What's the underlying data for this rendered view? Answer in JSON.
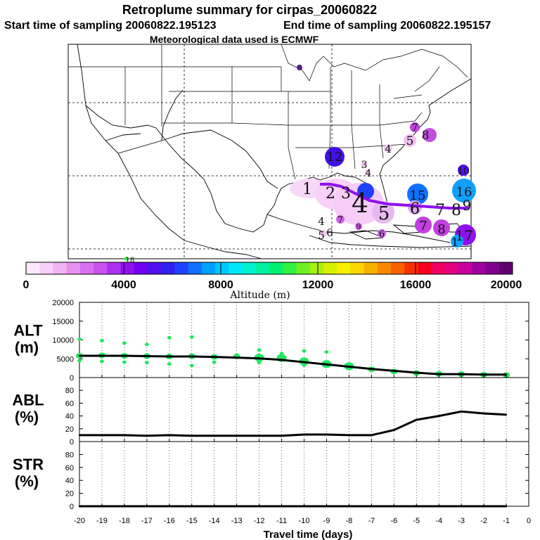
{
  "title": {
    "line1": "Retroplume summary for cirpas_20060822",
    "line2_start": "Start time of sampling 20060822.195123",
    "line2_end": "End time of sampling 20060822.195157",
    "line3": "Meteorological data used is ECMWF"
  },
  "colorbar": {
    "label": "Altitude (m)",
    "ticks": [
      "0",
      "4000",
      "8000",
      "12000",
      "16000",
      "20000"
    ],
    "range": [
      0,
      20000
    ],
    "colors": [
      "#fce8fc",
      "#f8cff8",
      "#f0b2f0",
      "#e890ee",
      "#d870ee",
      "#c850f0",
      "#b030f0",
      "#9010f0",
      "#7000f0",
      "#5010ee",
      "#3020ee",
      "#2040ff",
      "#1070ff",
      "#00a0ff",
      "#00c8ff",
      "#00e8f8",
      "#00f0d0",
      "#00f0a0",
      "#00f070",
      "#30f040",
      "#70f020",
      "#a8f010",
      "#d8f000",
      "#f8f000",
      "#f8d800",
      "#f8b000",
      "#f88800",
      "#f86000",
      "#f83000",
      "#f80020",
      "#f00060",
      "#e00080",
      "#c8009c",
      "#a000a0",
      "#800090",
      "#600070"
    ]
  },
  "map_labels": [
    {
      "text": "8",
      "color": "#8020f0",
      "size": "s"
    },
    {
      "text": "12",
      "color": "#4010e8",
      "size": "l"
    },
    {
      "text": "7",
      "color": "#c040e0",
      "size": "s"
    },
    {
      "text": "5",
      "color": "#f0c0f0",
      "size": "s"
    },
    {
      "text": "8",
      "color": "#c050e0",
      "size": "m"
    },
    {
      "text": "4",
      "color": "#f0c8f0",
      "size": "s"
    },
    {
      "text": "3",
      "color": "#f0c8f0",
      "size": "s"
    },
    {
      "text": "4",
      "color": "#f0c8f0",
      "size": "s"
    },
    {
      "text": "1",
      "color": "#f8d0f8",
      "size": "l"
    },
    {
      "text": "2",
      "color": "#f8d0f8",
      "size": "l"
    },
    {
      "text": "3",
      "color": "#f8d0f8",
      "size": "l"
    },
    {
      "text": "4",
      "color": "#f8d0f8",
      "size": "xl"
    },
    {
      "text": "5",
      "color": "#e8b8f0",
      "size": "m"
    },
    {
      "text": "15",
      "color": "#1070ff",
      "size": "l"
    },
    {
      "text": "16",
      "color": "#10a0ff",
      "size": "l"
    },
    {
      "text": "10",
      "color": "#5010ee",
      "size": "s"
    },
    {
      "text": "6",
      "color": "#e0a8f0",
      "size": "m"
    },
    {
      "text": "7",
      "color": "#d890f0",
      "size": "m"
    },
    {
      "text": "8",
      "color": "#d890f0",
      "size": "m"
    },
    {
      "text": "9",
      "color": "#d890f0",
      "size": "m"
    },
    {
      "text": "7",
      "color": "#c040e0",
      "size": "m"
    },
    {
      "text": "8",
      "color": "#c040e0",
      "size": "m"
    },
    {
      "text": "17",
      "color": "#9010f0",
      "size": "l"
    },
    {
      "text": "1",
      "color": "#10a0ff",
      "size": "m"
    },
    {
      "text": "4",
      "color": "#f0c8f0",
      "size": "s"
    },
    {
      "text": "5",
      "color": "#f0c8f0",
      "size": "s"
    },
    {
      "text": "6",
      "color": "#f0c8f0",
      "size": "s"
    },
    {
      "text": "7",
      "color": "#d060e8",
      "size": "s"
    },
    {
      "text": "6",
      "color": "#d060e8",
      "size": "s"
    },
    {
      "text": "9",
      "color": "#d060e8",
      "size": "s"
    },
    {
      "text": "18",
      "color": "#30f040",
      "size": "s"
    }
  ],
  "chart_data": [
    {
      "type": "line",
      "name": "ALT",
      "ylabel": "ALT\n(m)",
      "ylabel_lines": [
        "ALT",
        "(m)"
      ],
      "ylim": [
        0,
        20000
      ],
      "yticks": [
        "0",
        "5000",
        "10000",
        "15000",
        "20000"
      ],
      "x": [
        -20,
        -19,
        -18,
        -17,
        -16,
        -15,
        -14,
        -13,
        -12,
        -11,
        -10,
        -9,
        -8,
        -7,
        -6,
        -5,
        -4,
        -3,
        -2,
        -1
      ],
      "values": [
        5800,
        5800,
        5800,
        5700,
        5600,
        5600,
        5500,
        5300,
        5100,
        4700,
        4100,
        3500,
        2900,
        2300,
        1800,
        1300,
        900,
        900,
        800,
        800
      ],
      "scatter_y": [
        [
          5800,
          4500,
          10200
        ],
        [
          5900,
          4300,
          9800
        ],
        [
          5800,
          4100,
          9200
        ],
        [
          5700,
          4000,
          8800
        ],
        [
          5600,
          3600,
          10600
        ],
        [
          5700,
          3200,
          10800
        ],
        [
          5500,
          4100
        ],
        [
          5600,
          6000
        ],
        [
          5300,
          7300,
          4000
        ],
        [
          5200,
          6400
        ],
        [
          4300,
          3300,
          7100
        ],
        [
          3600,
          6800
        ],
        [
          3000
        ],
        [
          2200
        ],
        [
          1600
        ],
        [
          1200
        ],
        [
          1000
        ],
        [
          900
        ],
        [
          800
        ],
        [
          700
        ]
      ]
    },
    {
      "type": "line",
      "name": "ABL",
      "ylabel": "ABL\n(%)",
      "ylabel_lines": [
        "ABL",
        "(%)"
      ],
      "ylim": [
        0,
        100
      ],
      "yticks": [
        "0",
        "20",
        "40",
        "60",
        "80"
      ],
      "x": [
        -20,
        -19,
        -18,
        -17,
        -16,
        -15,
        -14,
        -13,
        -12,
        -11,
        -10,
        -9,
        -8,
        -7,
        -6,
        -5,
        -4,
        -3,
        -2,
        -1
      ],
      "values": [
        10,
        10,
        10,
        9,
        10,
        9,
        9,
        9,
        9,
        9,
        11,
        11,
        10,
        10,
        18,
        34,
        40,
        47,
        44,
        42
      ]
    },
    {
      "type": "line",
      "name": "STR",
      "ylabel": "STR\n(%)",
      "ylabel_lines": [
        "STR",
        "(%)"
      ],
      "ylim": [
        0,
        100
      ],
      "yticks": [
        "0",
        "20",
        "40",
        "60",
        "80"
      ],
      "x": [
        -20,
        -19,
        -18,
        -17,
        -16,
        -15,
        -14,
        -13,
        -12,
        -11,
        -10,
        -9,
        -8,
        -7,
        -6,
        -5,
        -4,
        -3,
        -2,
        -1
      ],
      "values": [
        0,
        0,
        0,
        0,
        0,
        0,
        0,
        0,
        0,
        0,
        0,
        0,
        0,
        0,
        0,
        0,
        0,
        0,
        0,
        0
      ],
      "xlabel": "Travel time (days)",
      "xticks": [
        "-20",
        "-19",
        "-18",
        "-17",
        "-16",
        "-15",
        "-14",
        "-13",
        "-12",
        "-11",
        "-10",
        "-9",
        "-8",
        "-7",
        "-6",
        "-5",
        "-4",
        "-3",
        "-2",
        "-1",
        "0"
      ]
    }
  ]
}
